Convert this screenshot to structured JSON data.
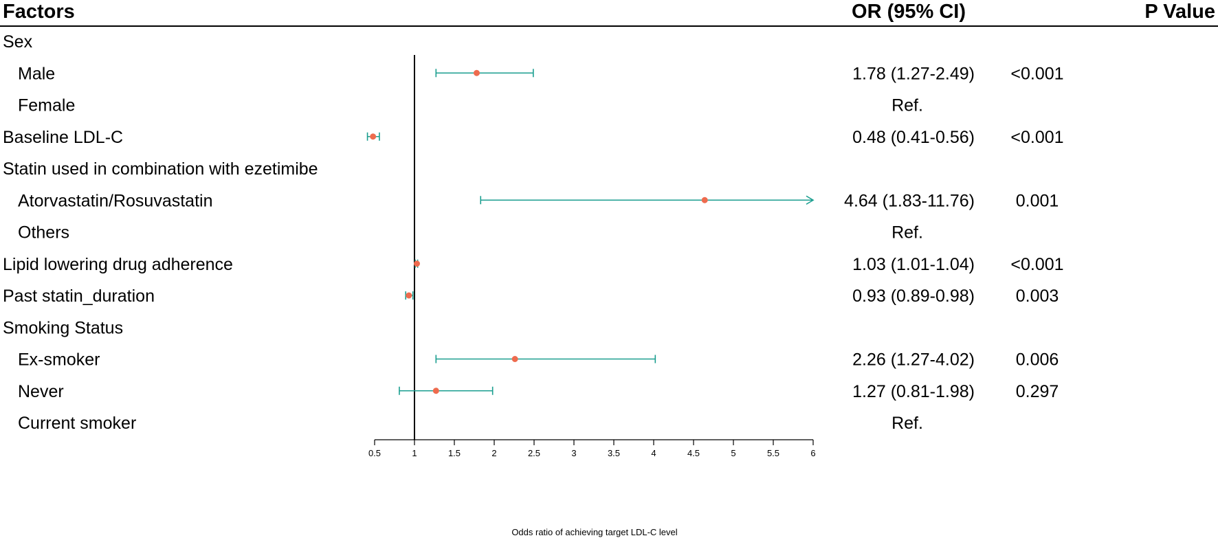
{
  "header": {
    "factors": "Factors",
    "or_ci": "OR (95% CI)",
    "p_value": "P Value"
  },
  "colors": {
    "ci_line": "#1a9e8f",
    "point": "#ee6b4e",
    "axis": "#000000",
    "text": "#111111"
  },
  "chart_data": {
    "type": "forest",
    "xlabel": "Odds ratio of achieving target LDL-C level",
    "xlim": [
      0.5,
      6
    ],
    "xticks": [
      "0.5",
      "1",
      "1.5",
      "2",
      "2.5",
      "3",
      "3.5",
      "4",
      "4.5",
      "5",
      "5.5",
      "6"
    ],
    "reference_line": 1,
    "rows": [
      {
        "label": "Sex",
        "indent": false
      },
      {
        "label": "Male",
        "indent": true,
        "or": 1.78,
        "lo": 1.27,
        "hi": 2.49,
        "or_text": "1.78 (1.27-2.49)",
        "p": "<0.001"
      },
      {
        "label": "Female",
        "indent": true,
        "or_text": "Ref.",
        "p": ""
      },
      {
        "label": "Baseline LDL-C",
        "indent": false,
        "or": 0.48,
        "lo": 0.41,
        "hi": 0.56,
        "or_text": "0.48 (0.41-0.56)",
        "p": "<0.001"
      },
      {
        "label": "Statin used in combination with ezetimibe",
        "indent": false
      },
      {
        "label": "Atorvastatin/Rosuvastatin",
        "indent": true,
        "or": 4.64,
        "lo": 1.83,
        "hi": 11.76,
        "or_text": "4.64 (1.83-11.76)",
        "p": "0.001"
      },
      {
        "label": "Others",
        "indent": true,
        "or_text": "Ref.",
        "p": ""
      },
      {
        "label": "Lipid lowering drug adherence",
        "indent": false,
        "or": 1.03,
        "lo": 1.01,
        "hi": 1.04,
        "or_text": "1.03 (1.01-1.04)",
        "p": "<0.001"
      },
      {
        "label": "Past statin_duration",
        "indent": false,
        "or": 0.93,
        "lo": 0.89,
        "hi": 0.98,
        "or_text": "0.93 (0.89-0.98)",
        "p": "0.003"
      },
      {
        "label": "Smoking Status",
        "indent": false
      },
      {
        "label": "Ex-smoker",
        "indent": true,
        "or": 2.26,
        "lo": 1.27,
        "hi": 4.02,
        "or_text": "2.26 (1.27-4.02)",
        "p": "0.006"
      },
      {
        "label": "Never",
        "indent": true,
        "or": 1.27,
        "lo": 0.81,
        "hi": 1.98,
        "or_text": "1.27 (0.81-1.98)",
        "p": "0.297"
      },
      {
        "label": "Current smoker",
        "indent": true,
        "or_text": "Ref.",
        "p": ""
      }
    ]
  }
}
